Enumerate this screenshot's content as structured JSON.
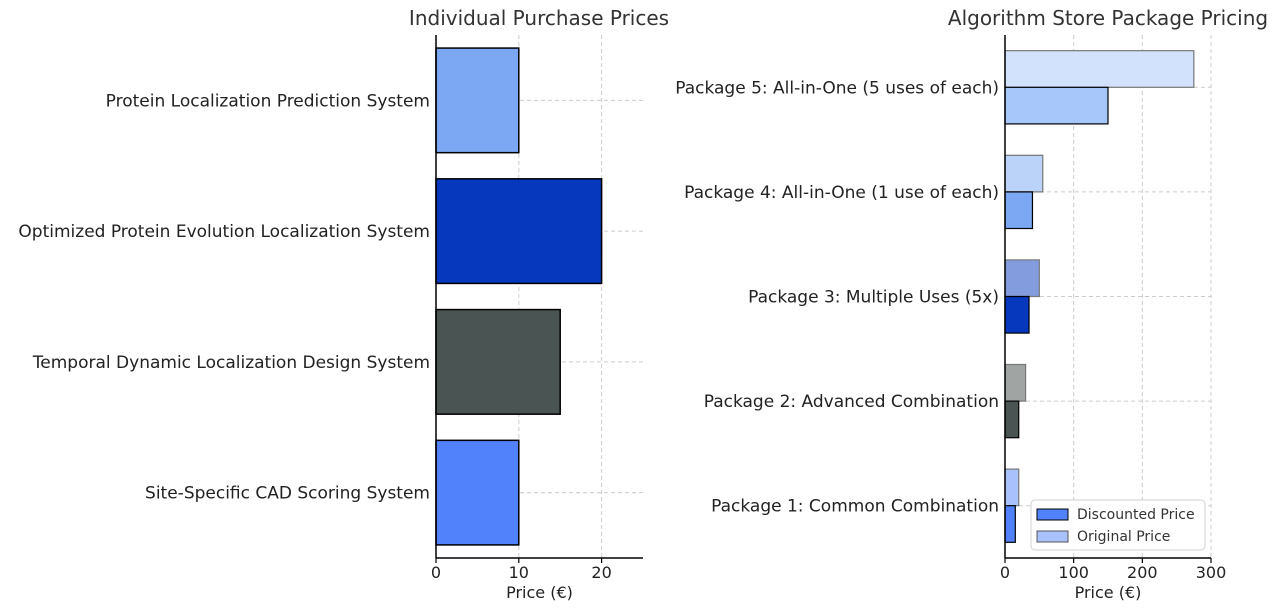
{
  "chart_data": [
    {
      "type": "bar",
      "orientation": "horizontal",
      "title": "Individual Purchase Prices",
      "xlabel": "Price (€)",
      "xlim": [
        0,
        25
      ],
      "xticks": [
        "0",
        "10",
        "20"
      ],
      "grid": true,
      "categories": [
        "Protein Localization Prediction System",
        "Optimized Protein Evolution Localization System",
        "Temporal Dynamic Localization Design System",
        "Site-Specific CAD Scoring System"
      ],
      "values": [
        10,
        20,
        15,
        10
      ],
      "colors": [
        "#7ba7f3",
        "#0638bd",
        "#4a5452",
        "#5282fb"
      ]
    },
    {
      "type": "bar",
      "orientation": "horizontal",
      "title": "Algorithm Store Package Pricing",
      "xlabel": "Price (€)",
      "xlim": [
        0,
        300
      ],
      "xticks": [
        "0",
        "100",
        "200",
        "300"
      ],
      "grid": true,
      "legend_position": "bottom-right",
      "categories": [
        "Package 5: All-in-One (5 uses of each)",
        "Package 4: All-in-One (1 use of each)",
        "Package 3: Multiple Uses (5x)",
        "Package 2: Advanced Combination",
        "Package 1: Common Combination"
      ],
      "series": [
        {
          "name": "Discounted Price",
          "values": [
            150,
            40,
            35,
            20,
            15
          ],
          "colors": [
            "#a7c7fb",
            "#7ba7f3",
            "#0638bd",
            "#4a5452",
            "#5282fb"
          ]
        },
        {
          "name": "Original Price",
          "values": [
            275,
            55,
            50,
            30,
            20
          ],
          "colors": [
            "#d3e2fc",
            "#bcd3f9",
            "#839cde",
            "#a0a5a4",
            "#a9c1fc"
          ]
        }
      ]
    }
  ]
}
